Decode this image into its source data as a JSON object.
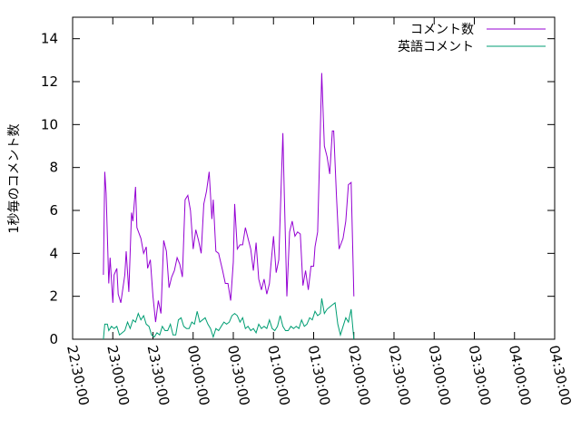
{
  "chart_data": {
    "type": "line",
    "title": "",
    "xlabel": "",
    "ylabel": "1秒毎のコメント数",
    "y_ticks": [
      0,
      2,
      4,
      6,
      8,
      10,
      12,
      14
    ],
    "ylim": [
      0,
      15
    ],
    "xlim": [
      "22:30:00",
      "04:30:00"
    ],
    "x_ticks": [
      "22:30:00",
      "23:00:00",
      "23:30:00",
      "00:00:00",
      "00:30:00",
      "01:00:00",
      "01:30:00",
      "02:00:00",
      "02:30:00",
      "03:00:00",
      "03:30:00",
      "04:00:00",
      "04:30:00"
    ],
    "grid": false,
    "legend": "top-right",
    "series": [
      {
        "name": "コメント数",
        "color": "#9400d3",
        "points": [
          [
            "22:53:00",
            3.0
          ],
          [
            "22:54:00",
            7.8
          ],
          [
            "22:55:00",
            6.8
          ],
          [
            "22:57:00",
            2.6
          ],
          [
            "22:58:00",
            3.8
          ],
          [
            "23:00:00",
            1.7
          ],
          [
            "23:01:00",
            3.0
          ],
          [
            "23:03:00",
            3.3
          ],
          [
            "23:04:00",
            2.1
          ],
          [
            "23:06:00",
            1.7
          ],
          [
            "23:09:00",
            3.0
          ],
          [
            "23:10:00",
            4.1
          ],
          [
            "23:12:00",
            2.2
          ],
          [
            "23:14:00",
            5.9
          ],
          [
            "23:15:00",
            5.5
          ],
          [
            "23:17:00",
            7.1
          ],
          [
            "23:18:00",
            5.2
          ],
          [
            "23:21:00",
            4.7
          ],
          [
            "23:23:00",
            4.0
          ],
          [
            "23:25:00",
            4.3
          ],
          [
            "23:26:00",
            3.3
          ],
          [
            "23:28:00",
            3.7
          ],
          [
            "23:30:00",
            2.0
          ],
          [
            "23:32:00",
            0.8
          ],
          [
            "23:34:00",
            1.8
          ],
          [
            "23:36:00",
            1.2
          ],
          [
            "23:38:00",
            4.6
          ],
          [
            "23:40:00",
            4.1
          ],
          [
            "23:42:00",
            2.4
          ],
          [
            "23:44:00",
            2.9
          ],
          [
            "23:46:00",
            3.2
          ],
          [
            "23:48:00",
            3.8
          ],
          [
            "23:50:00",
            3.5
          ],
          [
            "23:52:00",
            2.9
          ],
          [
            "23:54:00",
            6.5
          ],
          [
            "23:56:00",
            6.7
          ],
          [
            "23:58:00",
            6.0
          ],
          [
            "00:00:00",
            4.2
          ],
          [
            "00:02:00",
            5.1
          ],
          [
            "00:04:00",
            4.6
          ],
          [
            "00:06:00",
            4.0
          ],
          [
            "00:08:00",
            6.3
          ],
          [
            "00:10:00",
            6.9
          ],
          [
            "00:12:00",
            7.8
          ],
          [
            "00:14:00",
            5.6
          ],
          [
            "00:15:00",
            6.5
          ],
          [
            "00:17:00",
            4.1
          ],
          [
            "00:19:00",
            4.0
          ],
          [
            "00:22:00",
            3.2
          ],
          [
            "00:24:00",
            2.6
          ],
          [
            "00:26:00",
            2.6
          ],
          [
            "00:28:00",
            1.8
          ],
          [
            "00:30:00",
            3.6
          ],
          [
            "00:31:00",
            6.3
          ],
          [
            "00:33:00",
            4.2
          ],
          [
            "00:35:00",
            4.4
          ],
          [
            "00:37:00",
            4.4
          ],
          [
            "00:39:00",
            5.2
          ],
          [
            "00:41:00",
            4.7
          ],
          [
            "00:43:00",
            4.2
          ],
          [
            "00:45:00",
            3.2
          ],
          [
            "00:47:00",
            4.5
          ],
          [
            "00:49:00",
            2.8
          ],
          [
            "00:51:00",
            2.3
          ],
          [
            "00:53:00",
            2.8
          ],
          [
            "00:55:00",
            2.1
          ],
          [
            "00:57:00",
            2.6
          ],
          [
            "00:58:00",
            3.4
          ],
          [
            "01:00:00",
            4.8
          ],
          [
            "01:02:00",
            3.1
          ],
          [
            "01:04:00",
            3.7
          ],
          [
            "01:07:00",
            9.6
          ],
          [
            "01:08:00",
            6.9
          ],
          [
            "01:10:00",
            2.0
          ],
          [
            "01:12:00",
            5.0
          ],
          [
            "01:14:00",
            5.5
          ],
          [
            "01:16:00",
            4.8
          ],
          [
            "01:18:00",
            5.0
          ],
          [
            "01:20:00",
            4.9
          ],
          [
            "01:22:00",
            2.5
          ],
          [
            "01:24:00",
            3.2
          ],
          [
            "01:26:00",
            2.3
          ],
          [
            "01:28:00",
            3.4
          ],
          [
            "01:30:00",
            3.4
          ],
          [
            "01:31:00",
            4.3
          ],
          [
            "01:33:00",
            5.0
          ],
          [
            "01:35:00",
            9.8
          ],
          [
            "01:36:00",
            12.4
          ],
          [
            "01:38:00",
            9.0
          ],
          [
            "01:40:00",
            8.5
          ],
          [
            "01:42:00",
            7.7
          ],
          [
            "01:44:00",
            9.7
          ],
          [
            "01:45:00",
            9.7
          ],
          [
            "01:47:00",
            6.7
          ],
          [
            "01:49:00",
            4.2
          ],
          [
            "01:52:00",
            4.7
          ],
          [
            "01:54:00",
            5.5
          ],
          [
            "01:56:00",
            7.2
          ],
          [
            "01:58:00",
            7.3
          ],
          [
            "02:00:00",
            2.0
          ]
        ]
      },
      {
        "name": "英語コメント",
        "color": "#009e73",
        "points": [
          [
            "22:53:00",
            0.0
          ],
          [
            "22:54:00",
            0.7
          ],
          [
            "22:56:00",
            0.7
          ],
          [
            "22:57:00",
            0.4
          ],
          [
            "22:59:00",
            0.6
          ],
          [
            "23:01:00",
            0.5
          ],
          [
            "23:03:00",
            0.6
          ],
          [
            "23:05:00",
            0.2
          ],
          [
            "23:07:00",
            0.3
          ],
          [
            "23:09:00",
            0.4
          ],
          [
            "23:11:00",
            0.8
          ],
          [
            "23:13:00",
            0.5
          ],
          [
            "23:15:00",
            0.9
          ],
          [
            "23:17:00",
            0.8
          ],
          [
            "23:19:00",
            1.2
          ],
          [
            "23:21:00",
            0.9
          ],
          [
            "23:23:00",
            1.1
          ],
          [
            "23:25:00",
            0.7
          ],
          [
            "23:27:00",
            0.6
          ],
          [
            "23:29:00",
            0.2
          ],
          [
            "23:31:00",
            0.1
          ],
          [
            "23:33:00",
            0.3
          ],
          [
            "23:35:00",
            0.2
          ],
          [
            "23:37:00",
            0.6
          ],
          [
            "23:39:00",
            0.4
          ],
          [
            "23:41:00",
            0.4
          ],
          [
            "23:43:00",
            0.7
          ],
          [
            "23:45:00",
            0.2
          ],
          [
            "23:47:00",
            0.2
          ],
          [
            "23:49:00",
            0.9
          ],
          [
            "23:51:00",
            1.0
          ],
          [
            "23:53:00",
            0.6
          ],
          [
            "23:55:00",
            0.5
          ],
          [
            "23:57:00",
            0.5
          ],
          [
            "23:59:00",
            0.8
          ],
          [
            "00:01:00",
            0.7
          ],
          [
            "00:03:00",
            1.3
          ],
          [
            "00:05:00",
            0.8
          ],
          [
            "00:07:00",
            0.9
          ],
          [
            "00:09:00",
            1.0
          ],
          [
            "00:11:00",
            0.7
          ],
          [
            "00:13:00",
            0.5
          ],
          [
            "00:15:00",
            0.1
          ],
          [
            "00:17:00",
            0.5
          ],
          [
            "00:19:00",
            0.4
          ],
          [
            "00:21:00",
            0.6
          ],
          [
            "00:23:00",
            0.8
          ],
          [
            "00:25:00",
            0.7
          ],
          [
            "00:27:00",
            0.8
          ],
          [
            "00:29:00",
            1.1
          ],
          [
            "00:31:00",
            1.2
          ],
          [
            "00:33:00",
            1.1
          ],
          [
            "00:35:00",
            0.8
          ],
          [
            "00:37:00",
            1.0
          ],
          [
            "00:39:00",
            0.5
          ],
          [
            "00:41:00",
            0.6
          ],
          [
            "00:43:00",
            0.4
          ],
          [
            "00:45:00",
            0.5
          ],
          [
            "00:47:00",
            0.3
          ],
          [
            "00:49:00",
            0.7
          ],
          [
            "00:51:00",
            0.5
          ],
          [
            "00:53:00",
            0.6
          ],
          [
            "00:55:00",
            0.5
          ],
          [
            "00:57:00",
            0.9
          ],
          [
            "00:59:00",
            0.5
          ],
          [
            "01:01:00",
            0.4
          ],
          [
            "01:03:00",
            0.6
          ],
          [
            "01:05:00",
            1.1
          ],
          [
            "01:07:00",
            0.6
          ],
          [
            "01:09:00",
            0.4
          ],
          [
            "01:11:00",
            0.4
          ],
          [
            "01:13:00",
            0.6
          ],
          [
            "01:15:00",
            0.5
          ],
          [
            "01:17:00",
            0.6
          ],
          [
            "01:19:00",
            0.5
          ],
          [
            "01:21:00",
            0.9
          ],
          [
            "01:23:00",
            0.6
          ],
          [
            "01:25:00",
            0.7
          ],
          [
            "01:27:00",
            1.0
          ],
          [
            "01:29:00",
            0.9
          ],
          [
            "01:31:00",
            1.3
          ],
          [
            "01:33:00",
            1.1
          ],
          [
            "01:35:00",
            1.2
          ],
          [
            "01:36:00",
            1.9
          ],
          [
            "01:38:00",
            1.2
          ],
          [
            "01:40:00",
            1.4
          ],
          [
            "01:42:00",
            1.5
          ],
          [
            "01:44:00",
            1.6
          ],
          [
            "01:46:00",
            1.7
          ],
          [
            "01:48:00",
            0.7
          ],
          [
            "01:50:00",
            0.2
          ],
          [
            "01:52:00",
            0.6
          ],
          [
            "01:54:00",
            1.0
          ],
          [
            "01:56:00",
            0.8
          ],
          [
            "01:58:00",
            1.4
          ],
          [
            "02:00:00",
            0.0
          ]
        ]
      }
    ]
  }
}
